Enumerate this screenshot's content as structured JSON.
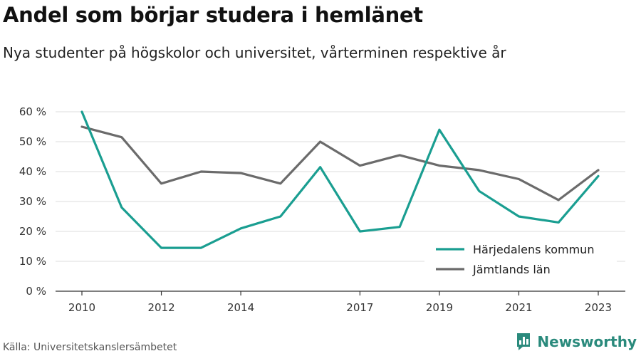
{
  "title": "Andel som börjar studera i hemlänet",
  "subtitle": "Nya studenter på högskolor och universitet, vårterminen respektive år",
  "source": "Källa: Universitetskanslersämbetet",
  "brand": {
    "name": "Newsworthy",
    "icon": "newsworthy-logo-icon",
    "color": "#2a8a7c"
  },
  "chart_data": {
    "type": "line",
    "title": "Andel som börjar studera i hemlänet",
    "subtitle": "Nya studenter på högskolor och universitet, vårterminen respektive år",
    "x": [
      2010,
      2011,
      2012,
      2013,
      2014,
      2015,
      2016,
      2017,
      2018,
      2019,
      2020,
      2021,
      2022,
      2023
    ],
    "x_tick_labels": [
      "2010",
      "2012",
      "2014",
      "2017",
      "2019",
      "2021",
      "2023"
    ],
    "x_tick_values": [
      2010,
      2012,
      2014,
      2017,
      2019,
      2021,
      2023
    ],
    "y_tick_labels": [
      "0 %",
      "10 %",
      "20 %",
      "30 %",
      "40 %",
      "50 %",
      "60 %"
    ],
    "y_tick_values": [
      0,
      10,
      20,
      30,
      40,
      50,
      60
    ],
    "ylim": [
      0,
      60
    ],
    "grid": true,
    "legend_position": "bottom-right",
    "series": [
      {
        "name": "Härjedalens kommun",
        "color": "#1a9e91",
        "values": [
          60,
          28,
          14.5,
          14.5,
          21,
          25,
          41.5,
          20,
          21.5,
          54,
          33.5,
          25,
          23,
          38.5
        ]
      },
      {
        "name": "Jämtlands län",
        "color": "#6b6b6b",
        "values": [
          55,
          51.5,
          36,
          40,
          39.5,
          36,
          50,
          42,
          45.5,
          42,
          40.5,
          37.5,
          30.5,
          40.5
        ]
      }
    ]
  }
}
